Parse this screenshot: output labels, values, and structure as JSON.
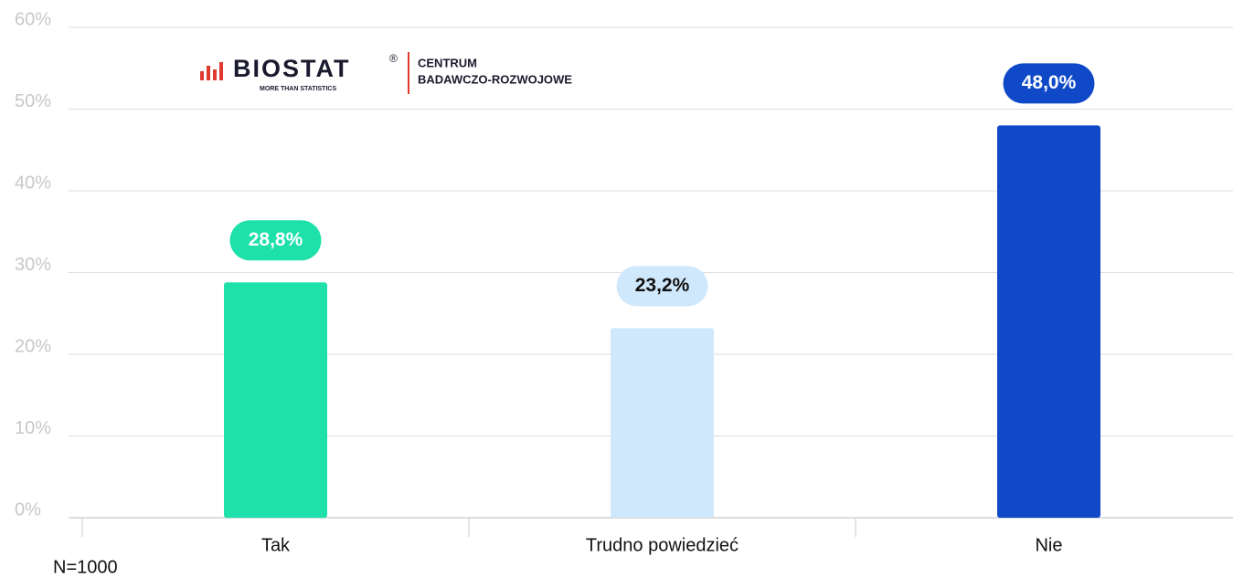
{
  "chart_data": {
    "type": "bar",
    "categories": [
      "Tak",
      "Trudno powiedzieć",
      "Nie"
    ],
    "values": [
      28.8,
      23.2,
      48.0
    ],
    "value_labels": [
      "28,8%",
      "23,2%",
      "48,0%"
    ],
    "colors": [
      "#1de0ab",
      "#d0e8fc",
      "#1049c8"
    ],
    "label_text_colors": [
      "#ffffff",
      "#111111",
      "#ffffff"
    ],
    "ylim": [
      0,
      60
    ],
    "yticks": [
      {
        "value": 0,
        "label": "0%"
      },
      {
        "value": 10,
        "label": "10%"
      },
      {
        "value": 20,
        "label": "20%"
      },
      {
        "value": 30,
        "label": "30%"
      },
      {
        "value": 40,
        "label": "40%"
      },
      {
        "value": 50,
        "label": "50%"
      },
      {
        "value": 60,
        "label": "60%"
      }
    ],
    "grid": true,
    "note": "N=1000",
    "logo": {
      "brand": "BIOSTAT",
      "registered": "®",
      "tagline": "MORE THAN STATISTICS",
      "line1": "CENTRUM",
      "line2": "BADAWCZO-ROZWOJOWE"
    }
  }
}
